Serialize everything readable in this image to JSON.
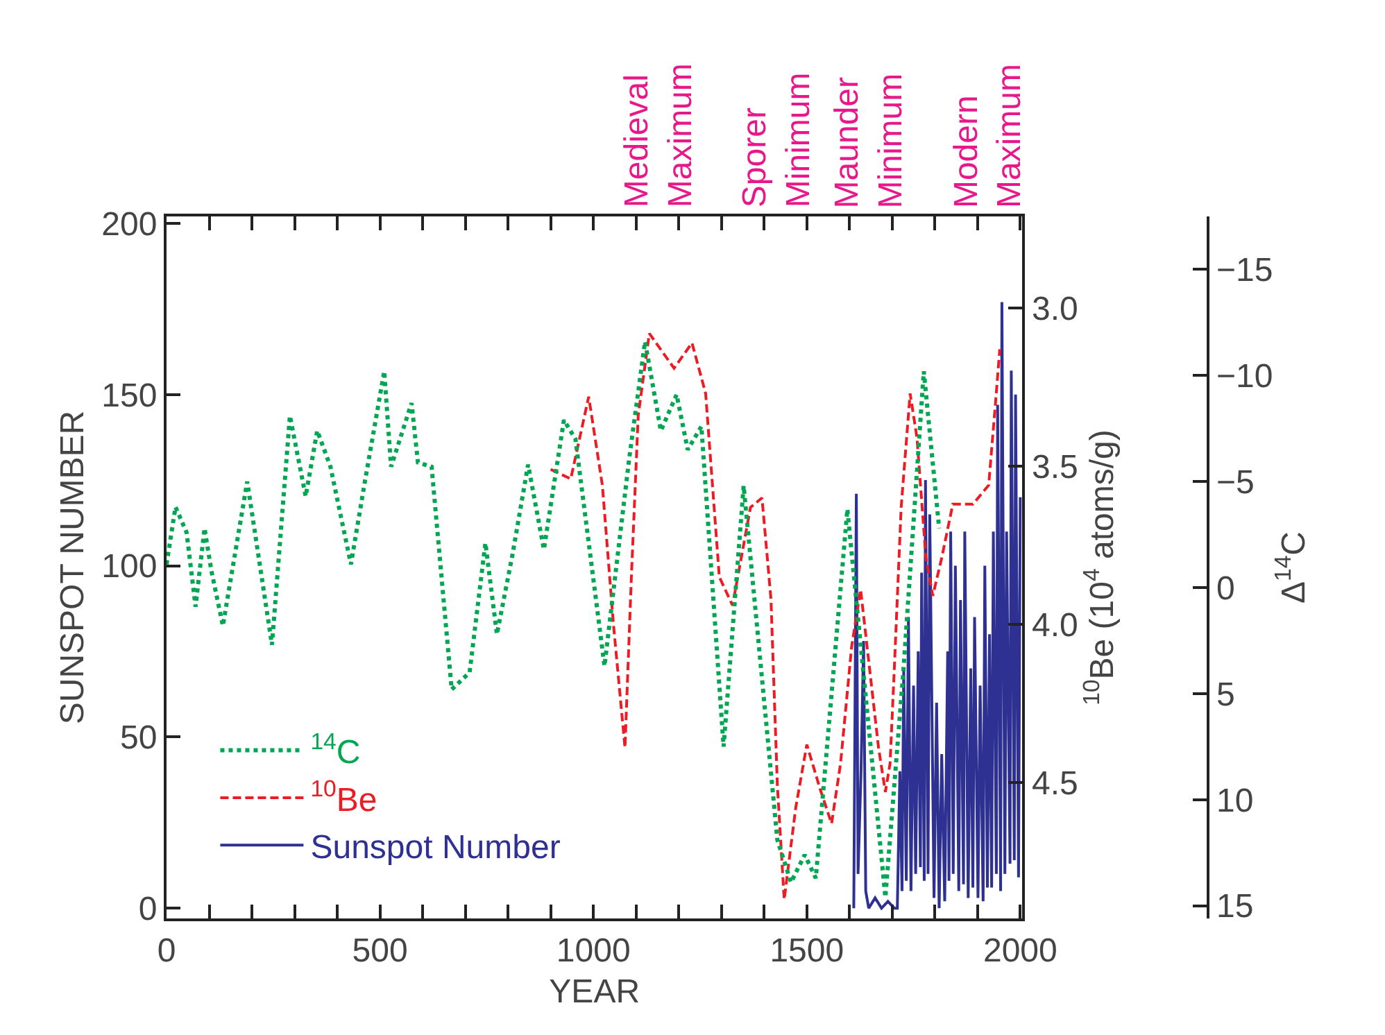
{
  "chart_data": {
    "type": "line",
    "xlabel": "YEAR",
    "ylabel": "SUNSPOT NUMBER",
    "y2label": "$^{10}$Be (10$^{4}$ atoms/g)",
    "y3label": "Δ$^{14}$C",
    "xlim": [
      0,
      2005
    ],
    "ylim": [
      -3,
      202
    ],
    "y2lim": [
      4.93,
      2.71
    ],
    "y3lim": [
      15.6,
      -17.5
    ],
    "xticks": [
      0,
      {
        "value": 100,
        "label": null
      },
      {
        "value": 200,
        "label": null
      },
      {
        "value": 300,
        "label": null
      },
      {
        "value": 400,
        "label": null
      },
      500,
      {
        "value": 600,
        "label": null
      },
      {
        "value": 700,
        "label": null
      },
      {
        "value": 800,
        "label": null
      },
      {
        "value": 900,
        "label": null
      },
      1000,
      {
        "value": 1100,
        "label": null
      },
      {
        "value": 1200,
        "label": null
      },
      {
        "value": 1300,
        "label": null
      },
      {
        "value": 1400,
        "label": null
      },
      1500,
      {
        "value": 1600,
        "label": null
      },
      {
        "value": 1700,
        "label": null
      },
      {
        "value": 1800,
        "label": null
      },
      {
        "value": 1900,
        "label": null
      },
      2000
    ],
    "yticks": [
      0,
      50,
      100,
      150,
      200
    ],
    "y2ticks": [
      {
        "value": 3,
        "label": "3.0"
      },
      3.5,
      {
        "value": 4,
        "label": "4.0"
      },
      4.5
    ],
    "y3ticks": [
      -15,
      -10,
      -5,
      0,
      5,
      10,
      15
    ],
    "marker": "none",
    "legend": "bottom left",
    "series": [
      {
        "name": "$^{14}$C",
        "color": "#00a651",
        "axis": "y3",
        "line_style": "dotted",
        "x": [
          0,
          21,
          47,
          68,
          89,
          105,
          132,
          189,
          247,
          289,
          326,
          353,
          384,
          432,
          463,
          510,
          526,
          574,
          589,
          621,
          668,
          710,
          747,
          774,
          810,
          847,
          884,
          931,
          958,
          1026,
          1084,
          1121,
          1158,
          1195,
          1221,
          1253,
          1305,
          1352,
          1431,
          1463,
          1495,
          1521,
          1595,
          1684,
          1726,
          1774,
          1810
        ],
        "values": [
          -1.1,
          -3.8,
          -2.6,
          0.9,
          -2.8,
          -0.8,
          1.8,
          -5.0,
          2.7,
          -8.1,
          -4.3,
          -7.4,
          -5.7,
          -1.1,
          -4.8,
          -10.2,
          -5.7,
          -8.7,
          -5.9,
          -5.7,
          4.8,
          4.0,
          -2.1,
          2.2,
          -1.5,
          -5.8,
          -1.8,
          -7.9,
          -7.0,
          3.7,
          -6.1,
          -11.6,
          -7.4,
          -9.1,
          -6.5,
          -7.6,
          7.5,
          -4.8,
          11.9,
          13.9,
          12.6,
          13.7,
          -3.7,
          14.6,
          4.0,
          -10.2,
          -2.8
        ]
      },
      {
        "name": "$^{10}$Be",
        "color": "#ed1c24",
        "axis": "y2",
        "line_style": "dashed",
        "x": [
          900,
          947,
          989,
          1021,
          1047,
          1074,
          1089,
          1105,
          1131,
          1189,
          1231,
          1263,
          1295,
          1326,
          1368,
          1395,
          1416,
          1431,
          1447,
          1474,
          1500,
          1531,
          1558,
          1579,
          1605,
          1626,
          1647,
          1668,
          1684,
          1695,
          1705,
          1721,
          1742,
          1758,
          1779,
          1795,
          1816,
          1842,
          1889,
          1926,
          1942,
          1952
        ],
        "values": [
          3.51,
          3.54,
          3.28,
          3.56,
          4.0,
          4.39,
          3.85,
          3.34,
          3.08,
          3.19,
          3.11,
          3.27,
          3.85,
          3.94,
          3.63,
          3.6,
          3.92,
          4.51,
          4.87,
          4.58,
          4.38,
          4.52,
          4.63,
          4.44,
          4.07,
          3.89,
          4.14,
          4.39,
          4.53,
          4.44,
          4.14,
          3.63,
          3.27,
          3.41,
          3.79,
          3.91,
          3.79,
          3.62,
          3.62,
          3.56,
          3.3,
          3.13
        ]
      },
      {
        "name": "Sunspot Number",
        "color": "#2e3192",
        "line_style": "solid",
        "x": [
          1610,
          1616,
          1620,
          1627,
          1633,
          1638,
          1645,
          1660,
          1675,
          1690,
          1705,
          1712,
          1718,
          1723,
          1727,
          1733,
          1738,
          1744,
          1750,
          1755,
          1761,
          1766,
          1769,
          1775,
          1778,
          1784,
          1788,
          1798,
          1804,
          1810,
          1816,
          1823,
          1830,
          1833,
          1837,
          1843,
          1848,
          1856,
          1860,
          1867,
          1870,
          1878,
          1884,
          1889,
          1893,
          1901,
          1906,
          1913,
          1917,
          1923,
          1928,
          1933,
          1937,
          1944,
          1947,
          1954,
          1957,
          1964,
          1968,
          1976,
          1979,
          1986,
          1989,
          1996,
          2000
        ],
        "values": [
          0,
          121,
          10,
          40,
          78,
          5,
          0,
          3,
          0,
          2,
          0,
          0,
          40,
          5,
          70,
          8,
          85,
          5,
          65,
          10,
          75,
          12,
          98,
          8,
          125,
          10,
          115,
          3,
          60,
          0,
          45,
          2,
          75,
          8,
          110,
          10,
          100,
          5,
          90,
          7,
          110,
          3,
          70,
          6,
          85,
          3,
          65,
          2,
          100,
          6,
          80,
          6,
          110,
          10,
          147,
          5,
          177,
          10,
          110,
          13,
          157,
          14,
          150,
          9,
          120
        ]
      }
    ],
    "annotations": [
      "Medieval\nMaximum",
      "Sporer\nMinimum",
      "Maunder\nMinimum",
      "Modern\nMaximum"
    ]
  }
}
